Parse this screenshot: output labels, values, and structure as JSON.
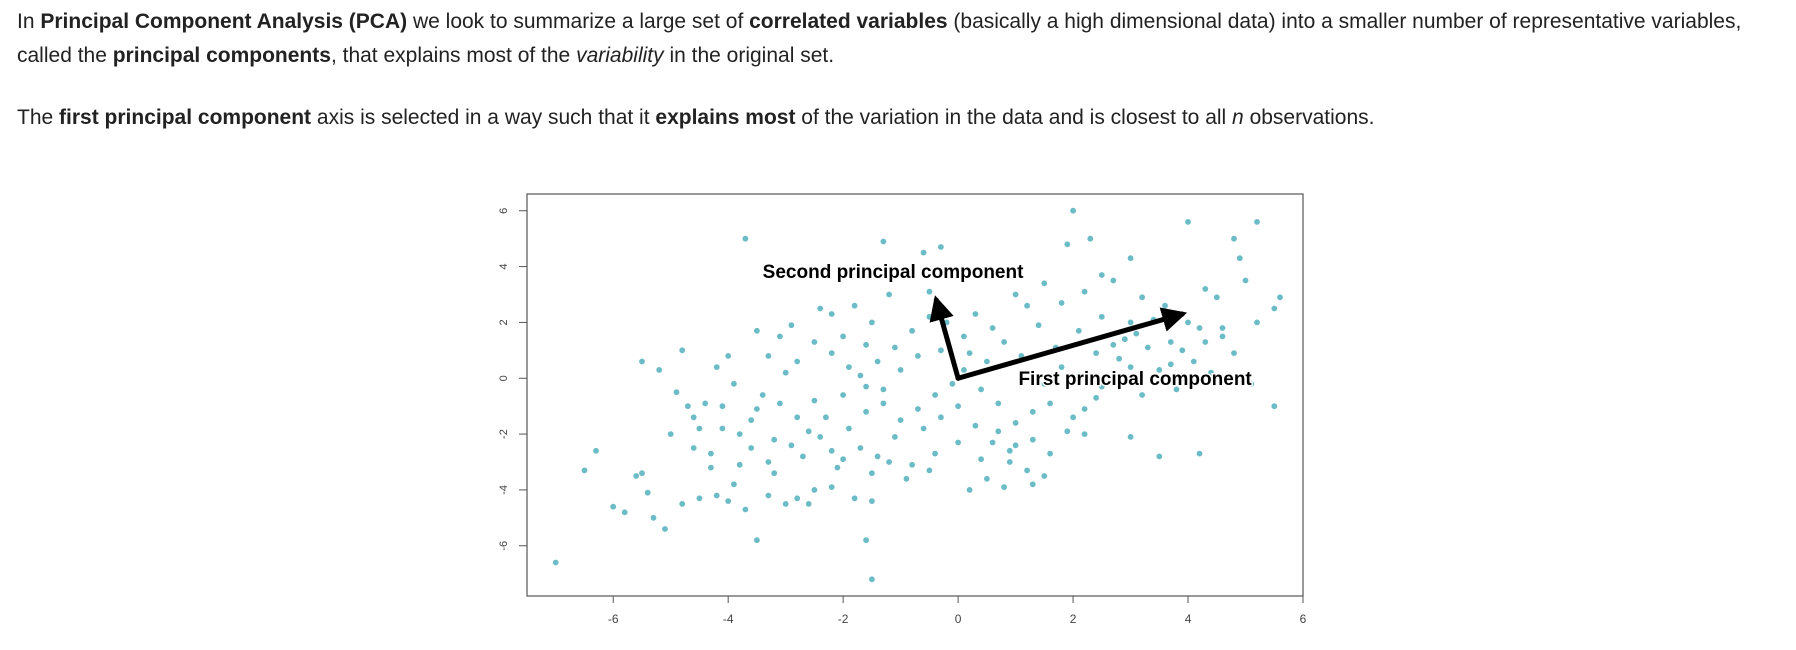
{
  "paragraph1": {
    "t1": "In ",
    "t2": "Principal Component Analysis (PCA)",
    "t3": " we look to summarize a large set of ",
    "t4": "correlated variables",
    "t5": " (basically a high dimensional data) into a smaller number of representative variables, called the ",
    "t6": "principal components",
    "t7": ", that explains most of the ",
    "t8": "variability",
    "t9": " in the original set."
  },
  "paragraph2": {
    "t1": "The ",
    "t2": "first principal component",
    "t3": " axis is selected in a way such that it ",
    "t4": "explains most",
    "t5": " of the variation in the data and is closest to all ",
    "t6": "n",
    "t7": " observations."
  },
  "chart_data": {
    "type": "scatter",
    "xlim": [
      -7.5,
      6
    ],
    "ylim": [
      -7.8,
      6.6
    ],
    "xticks": [
      "-6",
      "-4",
      "-2",
      "0",
      "2",
      "4",
      "6"
    ],
    "yticks": [
      "6",
      "4",
      "2",
      "0",
      "-2",
      "-4",
      "-6"
    ],
    "point_color": "#6bbcc6",
    "annotations": [
      {
        "text": "Second principal component",
        "x": -3.4,
        "y": 3.6
      },
      {
        "text": "First principal component",
        "x": 1.05,
        "y": -0.25
      }
    ],
    "arrows": [
      {
        "name": "first-pc",
        "from": [
          0,
          0
        ],
        "to": [
          3.9,
          2.3
        ]
      },
      {
        "name": "second-pc",
        "from": [
          0,
          0
        ],
        "to": [
          -0.38,
          2.8
        ]
      }
    ],
    "points": [
      [
        -7.0,
        -6.6
      ],
      [
        -6.5,
        -3.3
      ],
      [
        -6.3,
        -2.6
      ],
      [
        -6.0,
        -4.6
      ],
      [
        -5.8,
        -4.8
      ],
      [
        -5.6,
        -3.5
      ],
      [
        -5.5,
        -3.4
      ],
      [
        -5.4,
        -4.1
      ],
      [
        -5.3,
        -5.0
      ],
      [
        -5.1,
        -5.4
      ],
      [
        -5.5,
        0.6
      ],
      [
        -5.2,
        0.3
      ],
      [
        -4.8,
        1.0
      ],
      [
        -4.9,
        -0.5
      ],
      [
        -4.7,
        -1.0
      ],
      [
        -4.5,
        -1.8
      ],
      [
        -4.6,
        -2.5
      ],
      [
        -4.3,
        -3.2
      ],
      [
        -4.8,
        -4.5
      ],
      [
        -4.5,
        -4.3
      ],
      [
        -4.2,
        -4.2
      ],
      [
        -4.0,
        -4.4
      ],
      [
        -3.9,
        -3.8
      ],
      [
        -3.7,
        -4.7
      ],
      [
        -3.5,
        -5.8
      ],
      [
        -3.3,
        -4.2
      ],
      [
        -3.6,
        -2.5
      ],
      [
        -3.8,
        -2.0
      ],
      [
        -4.1,
        -1.0
      ],
      [
        -3.7,
        5.0
      ],
      [
        -3.5,
        1.7
      ],
      [
        -3.3,
        0.8
      ],
      [
        -3.1,
        1.5
      ],
      [
        -2.9,
        1.9
      ],
      [
        -2.4,
        2.5
      ],
      [
        -2.2,
        2.3
      ],
      [
        -2.0,
        1.5
      ],
      [
        -1.8,
        2.6
      ],
      [
        -1.6,
        1.2
      ],
      [
        -1.5,
        2.0
      ],
      [
        -1.3,
        4.9
      ],
      [
        -0.6,
        4.5
      ],
      [
        -0.3,
        4.7
      ],
      [
        -0.5,
        3.1
      ],
      [
        -1.2,
        3.0
      ],
      [
        -1.6,
        -5.8
      ],
      [
        -1.5,
        -7.2
      ],
      [
        -2.5,
        -4.0
      ],
      [
        -2.2,
        -3.9
      ],
      [
        -2.8,
        -4.3
      ],
      [
        -3.2,
        -3.4
      ],
      [
        -3.0,
        -4.5
      ],
      [
        -2.6,
        -4.5
      ],
      [
        -1.8,
        -4.3
      ],
      [
        -1.5,
        -4.4
      ],
      [
        0.2,
        -4.0
      ],
      [
        0.5,
        -3.6
      ],
      [
        0.8,
        -3.9
      ],
      [
        1.3,
        -3.8
      ],
      [
        1.5,
        -3.5
      ],
      [
        2.0,
        6.0
      ],
      [
        2.3,
        5.0
      ],
      [
        1.9,
        4.8
      ],
      [
        3.0,
        4.3
      ],
      [
        4.0,
        5.6
      ],
      [
        5.2,
        5.6
      ],
      [
        4.8,
        5.0
      ],
      [
        4.9,
        4.3
      ],
      [
        5.6,
        2.9
      ],
      [
        5.5,
        2.5
      ],
      [
        5.2,
        2.0
      ],
      [
        4.6,
        1.8
      ],
      [
        4.3,
        3.2
      ],
      [
        4.5,
        2.9
      ],
      [
        5.0,
        3.5
      ],
      [
        4.2,
        -2.7
      ],
      [
        3.5,
        -2.8
      ],
      [
        3.0,
        -2.1
      ],
      [
        5.5,
        -1.0
      ],
      [
        5.1,
        -0.2
      ],
      [
        4.8,
        0.9
      ],
      [
        4.6,
        1.5
      ],
      [
        4.2,
        1.8
      ],
      [
        3.9,
        1.0
      ],
      [
        3.7,
        0.5
      ],
      [
        3.3,
        1.1
      ],
      [
        3.0,
        2.0
      ],
      [
        2.7,
        3.5
      ],
      [
        2.5,
        3.7
      ],
      [
        2.2,
        3.1
      ],
      [
        1.8,
        2.7
      ],
      [
        1.5,
        3.4
      ],
      [
        1.2,
        2.6
      ],
      [
        1.0,
        3.0
      ],
      [
        0.6,
        1.8
      ],
      [
        0.3,
        2.3
      ],
      [
        0.1,
        1.5
      ],
      [
        -0.3,
        1.0
      ],
      [
        -0.7,
        0.8
      ],
      [
        -1.0,
        0.3
      ],
      [
        -1.3,
        -0.4
      ],
      [
        -1.6,
        -1.2
      ],
      [
        -1.9,
        -1.8
      ],
      [
        -2.2,
        -2.6
      ],
      [
        -2.5,
        -0.8
      ],
      [
        -2.8,
        -1.4
      ],
      [
        -3.0,
        0.2
      ],
      [
        -3.4,
        -0.6
      ],
      [
        -3.6,
        -1.5
      ],
      [
        -3.9,
        -0.2
      ],
      [
        -4.2,
        0.4
      ],
      [
        -4.4,
        -0.9
      ],
      [
        -4.0,
        0.8
      ],
      [
        -3.2,
        -2.2
      ],
      [
        -2.7,
        -2.8
      ],
      [
        -2.1,
        -3.2
      ],
      [
        -1.7,
        -2.5
      ],
      [
        -1.1,
        -2.1
      ],
      [
        -0.8,
        -3.1
      ],
      [
        -0.4,
        -2.7
      ],
      [
        0.0,
        -2.3
      ],
      [
        0.4,
        -2.9
      ],
      [
        0.7,
        -1.9
      ],
      [
        1.0,
        -2.4
      ],
      [
        1.3,
        -1.2
      ],
      [
        1.6,
        -0.9
      ],
      [
        2.0,
        -1.4
      ],
      [
        2.4,
        -0.7
      ],
      [
        2.8,
        -0.2
      ],
      [
        3.2,
        -0.6
      ],
      [
        3.5,
        0.3
      ],
      [
        3.8,
        -0.4
      ],
      [
        4.1,
        0.6
      ],
      [
        4.4,
        0.2
      ],
      [
        3.6,
        2.6
      ],
      [
        3.2,
        2.9
      ],
      [
        2.9,
        1.4
      ],
      [
        2.5,
        2.2
      ],
      [
        2.1,
        1.7
      ],
      [
        1.7,
        1.1
      ],
      [
        1.4,
        1.9
      ],
      [
        1.1,
        0.8
      ],
      [
        0.8,
        1.3
      ],
      [
        0.5,
        0.6
      ],
      [
        0.2,
        0.9
      ],
      [
        -0.1,
        -0.2
      ],
      [
        -0.4,
        -0.6
      ],
      [
        -0.7,
        -1.1
      ],
      [
        -1.0,
        -1.5
      ],
      [
        -1.3,
        -0.9
      ],
      [
        -1.6,
        -0.3
      ],
      [
        -1.9,
        0.4
      ],
      [
        -2.2,
        0.9
      ],
      [
        -2.5,
        1.3
      ],
      [
        -2.8,
        0.6
      ],
      [
        -3.1,
        -0.9
      ],
      [
        -2.6,
        -1.9
      ],
      [
        -2.3,
        -1.4
      ],
      [
        -2.0,
        -0.6
      ],
      [
        -1.7,
        0.1
      ],
      [
        -1.4,
        0.6
      ],
      [
        -1.1,
        1.1
      ],
      [
        -0.8,
        1.7
      ],
      [
        -0.5,
        2.2
      ],
      [
        -0.2,
        2.0
      ],
      [
        0.1,
        0.3
      ],
      [
        0.4,
        -0.4
      ],
      [
        0.7,
        -0.9
      ],
      [
        1.0,
        -1.6
      ],
      [
        1.3,
        -2.2
      ],
      [
        1.6,
        -2.7
      ],
      [
        1.9,
        -1.9
      ],
      [
        2.2,
        -1.1
      ],
      [
        2.5,
        -0.3
      ],
      [
        2.8,
        0.7
      ],
      [
        3.1,
        1.6
      ],
      [
        3.4,
        2.1
      ],
      [
        3.7,
        1.3
      ],
      [
        4.0,
        2.0
      ],
      [
        4.3,
        1.3
      ],
      [
        -0.9,
        -3.6
      ],
      [
        -1.2,
        -3.0
      ],
      [
        -1.5,
        -3.4
      ],
      [
        -0.6,
        -1.8
      ],
      [
        -0.3,
        -1.4
      ],
      [
        0.0,
        -1.0
      ],
      [
        0.3,
        -1.7
      ],
      [
        0.6,
        -2.3
      ],
      [
        0.9,
        -3.0
      ],
      [
        1.2,
        -3.3
      ],
      [
        1.5,
        -0.2
      ],
      [
        1.8,
        0.4
      ],
      [
        2.1,
        0.1
      ],
      [
        2.4,
        0.9
      ],
      [
        2.7,
        1.2
      ],
      [
        3.0,
        0.4
      ],
      [
        -2.4,
        -2.1
      ],
      [
        -2.0,
        -2.9
      ],
      [
        -3.5,
        -1.1
      ],
      [
        -3.3,
        -3.0
      ],
      [
        -4.3,
        -2.7
      ],
      [
        -4.6,
        -1.4
      ],
      [
        -5.0,
        -2.0
      ],
      [
        -4.1,
        -1.8
      ],
      [
        -3.8,
        -3.1
      ],
      [
        -2.9,
        -2.4
      ],
      [
        -1.4,
        -2.8
      ],
      [
        -0.5,
        -3.3
      ],
      [
        0.9,
        -2.6
      ],
      [
        2.2,
        -2.0
      ]
    ]
  }
}
